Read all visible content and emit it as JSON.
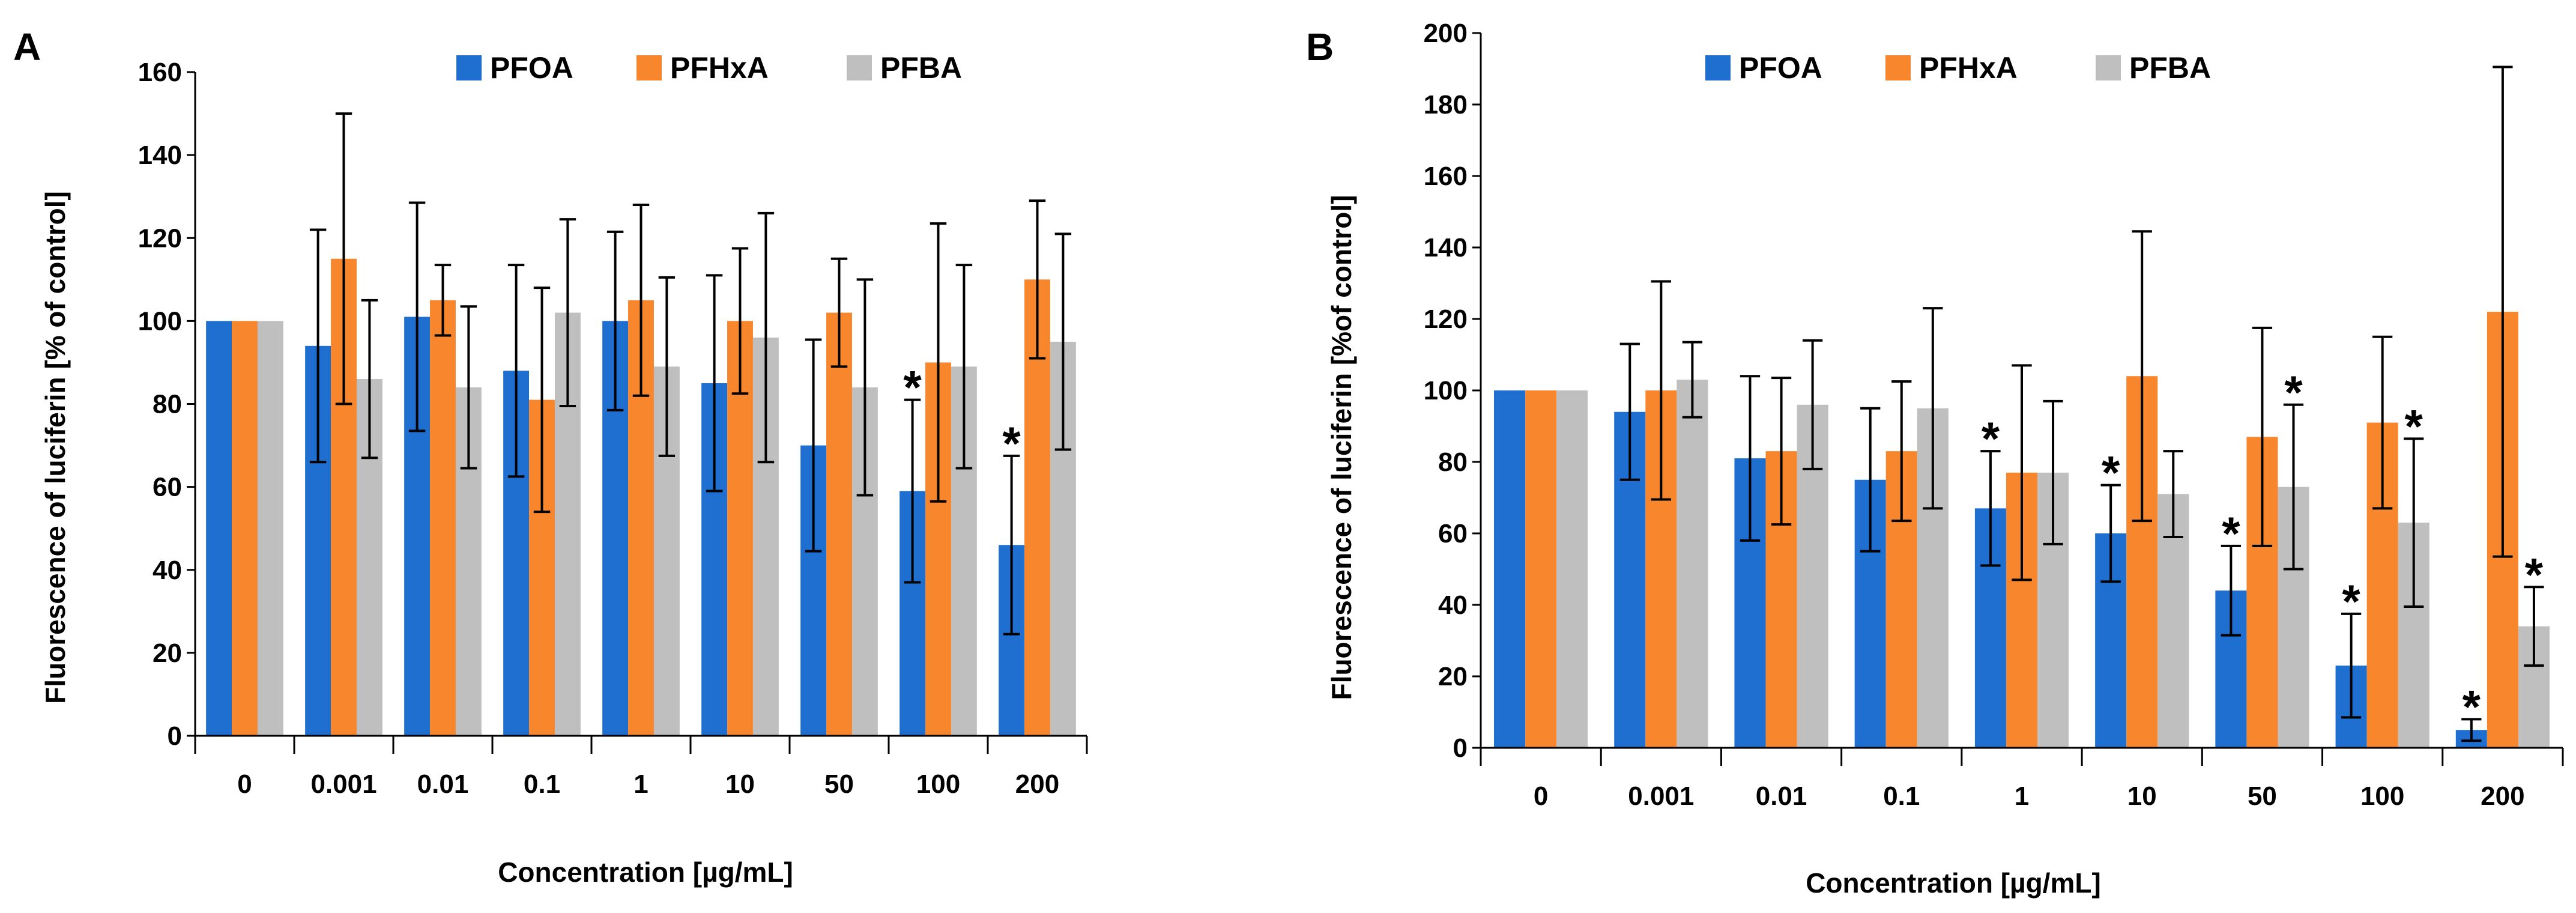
{
  "figure": {
    "panel_letters": [
      "A",
      "B"
    ]
  },
  "colors": {
    "PFOA": "#1f6fd1",
    "PFHxA": "#f7862c",
    "PFBA": "#bfbfbf"
  },
  "chart_data": [
    {
      "type": "bar",
      "panel": "A",
      "xlabel": "Concentration [µg/mL]",
      "ylabel": "Fluorescence of luciferin [% of control]",
      "ylim": [
        0,
        160
      ],
      "yticks": [
        0,
        20,
        40,
        60,
        80,
        100,
        120,
        140,
        160
      ],
      "categories": [
        "0",
        "0.001",
        "0.01",
        "0.1",
        "1",
        "10",
        "50",
        "100",
        "200"
      ],
      "legend": [
        "PFOA",
        "PFHxA",
        "PFBA"
      ],
      "series": [
        {
          "name": "PFOA",
          "values": [
            100,
            94,
            101,
            88,
            100,
            85,
            70,
            59,
            46
          ],
          "err": [
            0,
            28,
            27.5,
            25.5,
            21.5,
            26,
            25.5,
            22,
            21.5
          ],
          "sig": [
            false,
            false,
            false,
            false,
            false,
            false,
            false,
            true,
            true
          ]
        },
        {
          "name": "PFHxA",
          "values": [
            100,
            115,
            105,
            81,
            105,
            100,
            102,
            90,
            110
          ],
          "err": [
            0,
            35,
            8.5,
            27,
            23,
            17.5,
            13,
            33.5,
            19
          ],
          "sig": [
            false,
            false,
            false,
            false,
            false,
            false,
            false,
            false,
            false
          ]
        },
        {
          "name": "PFBA",
          "values": [
            100,
            86,
            84,
            102,
            89,
            96,
            84,
            89,
            95
          ],
          "err": [
            0,
            19,
            19.5,
            22.5,
            21.5,
            30,
            26,
            24.5,
            26
          ],
          "sig": [
            false,
            false,
            false,
            false,
            false,
            false,
            false,
            false,
            false
          ]
        }
      ],
      "significance_marker": "*"
    },
    {
      "type": "bar",
      "panel": "B",
      "xlabel": "Concentration [µg/mL]",
      "ylabel": "Fluorescence of luciferin [%of control]",
      "ylim": [
        0,
        200
      ],
      "yticks": [
        0,
        20,
        40,
        60,
        80,
        100,
        120,
        140,
        160,
        180,
        200
      ],
      "categories": [
        "0",
        "0.001",
        "0.01",
        "0.1",
        "1",
        "10",
        "50",
        "100",
        "200"
      ],
      "legend": [
        "PFOA",
        "PFHxA",
        "PFBA"
      ],
      "series": [
        {
          "name": "PFOA",
          "values": [
            100,
            94,
            81,
            75,
            67,
            60,
            44,
            23,
            5
          ],
          "err": [
            0,
            19,
            23,
            20,
            16,
            13.5,
            12.5,
            14.5,
            3
          ],
          "sig": [
            false,
            false,
            false,
            false,
            true,
            true,
            true,
            true,
            true
          ]
        },
        {
          "name": "PFHxA",
          "values": [
            100,
            100,
            83,
            83,
            77,
            104,
            87,
            91,
            122
          ],
          "err": [
            0,
            30.5,
            20.5,
            19.5,
            30,
            40.5,
            30.5,
            24,
            68.5
          ],
          "sig": [
            false,
            false,
            false,
            false,
            false,
            false,
            false,
            false,
            false
          ]
        },
        {
          "name": "PFBA",
          "values": [
            100,
            103,
            96,
            95,
            77,
            71,
            73,
            63,
            34
          ],
          "err": [
            0,
            10.5,
            18,
            28,
            20,
            12,
            23,
            23.5,
            11
          ],
          "sig": [
            false,
            false,
            false,
            false,
            false,
            false,
            true,
            true,
            true
          ]
        }
      ],
      "significance_marker": "*"
    }
  ]
}
